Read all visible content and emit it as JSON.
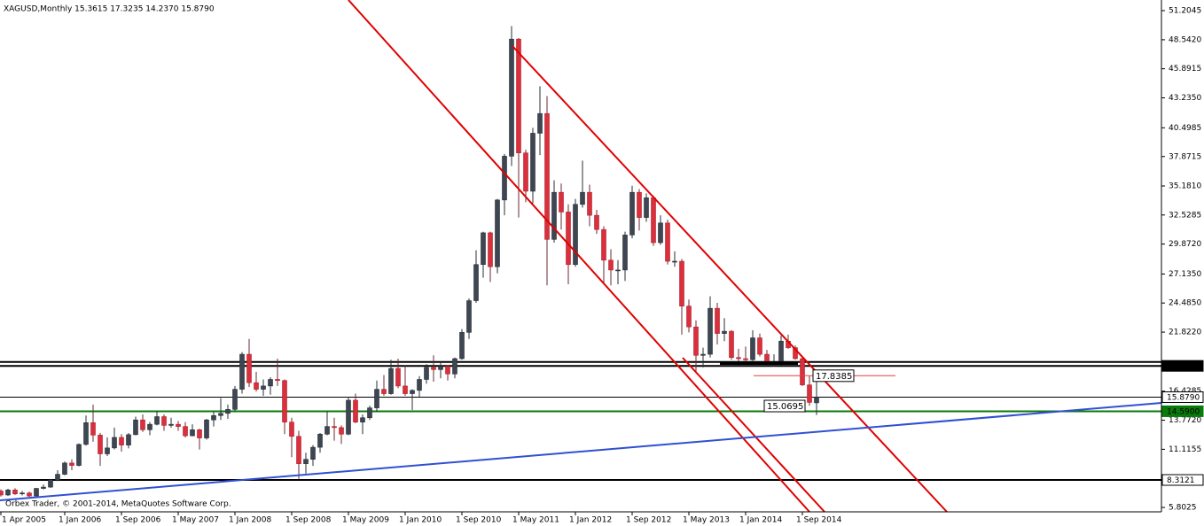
{
  "header": "XAGUSD,Monthly  15.3615 17.3235 14.2370 15.8790",
  "copyright": "Orbex Trader, © 2001-2014, MetaQuotes Software Corp.",
  "chart_data": {
    "type": "candlestick",
    "up_color": "#3d4652",
    "down_color": "#d9303c",
    "ylim": [
      5.4,
      52.176
    ],
    "yticks": [
      51.2045,
      {
        "value": 48.542,
        "label": "48.5420"
      },
      45.8915,
      {
        "value": 43.235,
        "label": "43.2350"
      },
      40.4985,
      37.8715,
      {
        "value": 35.181,
        "label": "35.1810"
      },
      32.5285,
      {
        "value": 29.872,
        "label": "29.8720"
      },
      {
        "value": 27.135,
        "label": "27.1350"
      },
      {
        "value": 24.485,
        "label": "24.4850"
      },
      {
        "value": 21.822,
        "label": "21.8220"
      },
      16.4285,
      {
        "value": 13.772,
        "label": "13.7720"
      },
      11.1155,
      5.8025
    ],
    "categories": [
      "1 Apr 2005",
      null,
      null,
      null,
      null,
      null,
      null,
      null,
      null,
      "1 Jan 2006",
      null,
      null,
      null,
      null,
      null,
      null,
      null,
      "1 Sep 2006",
      null,
      null,
      null,
      null,
      null,
      null,
      null,
      "1 May 2007",
      null,
      null,
      null,
      null,
      null,
      null,
      null,
      "1 Jan 2008",
      null,
      null,
      null,
      null,
      null,
      null,
      null,
      "1 Sep 2008",
      null,
      null,
      null,
      null,
      null,
      null,
      null,
      "1 May 2009",
      null,
      null,
      null,
      null,
      null,
      null,
      null,
      "1 Jan 2010",
      null,
      null,
      null,
      null,
      null,
      null,
      null,
      "1 Sep 2010",
      null,
      null,
      null,
      null,
      null,
      null,
      null,
      "1 May 2011",
      null,
      null,
      null,
      null,
      null,
      null,
      null,
      "1 Jan 2012",
      null,
      null,
      null,
      null,
      null,
      null,
      null,
      "1 Sep 2012",
      null,
      null,
      null,
      null,
      null,
      null,
      null,
      "1 May 2013",
      null,
      null,
      null,
      null,
      null,
      null,
      null,
      "1 Jan 2014",
      null,
      null,
      null,
      null,
      null,
      null,
      null,
      "1 Sep 2014",
      null,
      null
    ],
    "open": [
      7.3,
      6.94,
      7.4,
      7.04,
      7.12,
      6.85,
      7.54,
      7.66,
      8.31,
      8.83,
      9.86,
      9.64,
      11.56,
      13.55,
      12.41,
      10.7,
      11.24,
      12.2,
      11.5,
      12.45,
      13.8,
      12.9,
      13.4,
      14.1,
      13.3,
      13.4,
      13.2,
      12.35,
      12.9,
      12.15,
      13.8,
      14.2,
      14.4,
      14.76,
      16.6,
      19.8,
      17.2,
      16.6,
      16.9,
      17.5,
      17.4,
      13.6,
      12.3,
      9.8,
      10.2,
      11.3,
      12.5,
      13.2,
      13.1,
      12.5,
      15.6,
      13.6,
      14.0,
      14.9,
      16.6,
      16.2,
      18.5,
      16.9,
      16.2,
      16.5,
      17.5,
      18.6,
      18.4,
      18.7,
      18.0,
      19.4,
      21.8,
      24.7,
      28.0,
      30.9,
      27.8,
      33.9,
      37.9,
      48.6,
      38.2,
      34.7,
      40.0,
      41.8,
      30.3,
      34.6,
      32.8,
      28.0,
      33.5,
      34.6,
      32.5,
      31.2,
      28.4,
      27.5,
      27.5,
      30.7,
      34.6,
      32.3,
      34.1,
      30.0,
      31.8,
      28.3,
      28.3,
      24.2,
      22.3,
      19.7,
      19.8,
      24.0,
      21.7,
      21.9,
      19.5,
      19.4,
      19.3,
      21.3,
      19.8,
      19.1,
      19.1,
      21.0,
      20.4,
      19.4,
      17.0,
      15.3615
    ],
    "high": [
      7.45,
      7.5,
      7.55,
      7.3,
      7.25,
      7.6,
      7.9,
      8.4,
      9.2,
      10.0,
      10.2,
      11.65,
      14.2,
      15.2,
      12.6,
      12.2,
      13.1,
      12.5,
      12.6,
      14.1,
      14.3,
      13.6,
      14.6,
      14.3,
      14.0,
      13.7,
      13.6,
      13.4,
      13.0,
      13.9,
      14.5,
      15.8,
      15.2,
      16.9,
      20.0,
      21.2,
      18.2,
      17.5,
      17.7,
      19.4,
      17.5,
      14.0,
      12.8,
      10.8,
      11.5,
      12.6,
      14.6,
      14.0,
      13.3,
      15.9,
      16.2,
      14.3,
      15.1,
      17.4,
      17.9,
      19.3,
      19.4,
      18.8,
      16.6,
      17.8,
      18.9,
      19.7,
      19.1,
      18.8,
      19.5,
      22.1,
      24.9,
      29.3,
      31.0,
      31.0,
      34.0,
      38.1,
      49.8,
      48.7,
      38.5,
      40.5,
      44.3,
      43.4,
      35.7,
      35.4,
      33.5,
      34.0,
      37.5,
      35.3,
      33.0,
      31.5,
      29.4,
      28.4,
      31.0,
      35.2,
      34.9,
      34.5,
      34.3,
      32.5,
      32.1,
      29.2,
      28.5,
      24.8,
      22.9,
      20.4,
      25.1,
      24.5,
      23.1,
      22.0,
      20.3,
      20.5,
      22.0,
      21.7,
      20.2,
      19.8,
      21.5,
      21.6,
      20.6,
      19.5,
      17.8,
      17.3235
    ],
    "low": [
      6.8,
      6.85,
      6.95,
      6.9,
      6.75,
      6.8,
      7.45,
      7.6,
      8.2,
      8.75,
      9.2,
      9.55,
      11.45,
      11.8,
      9.6,
      10.5,
      11.1,
      10.9,
      11.2,
      12.4,
      12.7,
      12.4,
      13.3,
      12.8,
      13.1,
      12.8,
      12.2,
      12.3,
      11.1,
      12.0,
      13.2,
      13.8,
      13.9,
      14.6,
      16.2,
      16.8,
      16.4,
      16.0,
      16.1,
      16.9,
      12.5,
      10.4,
      8.4,
      8.9,
      9.6,
      10.8,
      12.4,
      11.9,
      11.6,
      12.4,
      13.5,
      12.5,
      13.8,
      14.5,
      16.0,
      16.1,
      16.7,
      16.0,
      14.7,
      15.9,
      17.1,
      17.3,
      17.6,
      17.4,
      17.6,
      19.3,
      21.2,
      24.5,
      26.8,
      26.4,
      27.2,
      32.5,
      37.0,
      32.3,
      33.7,
      33.6,
      38.0,
      26.1,
      30.0,
      31.2,
      26.2,
      27.8,
      33.2,
      31.5,
      30.8,
      26.3,
      26.1,
      26.2,
      26.5,
      30.4,
      31.1,
      31.9,
      29.7,
      29.8,
      28.0,
      27.8,
      21.6,
      21.8,
      18.2,
      18.6,
      19.5,
      20.7,
      21.0,
      19.3,
      18.8,
      19.0,
      19.2,
      19.6,
      18.9,
      18.7,
      18.8,
      20.3,
      19.3,
      16.9,
      15.1,
      14.237
    ],
    "close": [
      6.94,
      7.4,
      7.04,
      7.12,
      6.85,
      7.54,
      7.66,
      8.31,
      8.83,
      9.86,
      9.64,
      11.56,
      13.55,
      12.41,
      10.7,
      11.24,
      12.2,
      11.5,
      12.45,
      13.8,
      12.9,
      13.4,
      14.1,
      13.3,
      13.4,
      13.2,
      12.35,
      12.9,
      12.15,
      13.8,
      14.2,
      14.4,
      14.76,
      16.6,
      19.8,
      17.2,
      16.6,
      16.9,
      17.5,
      17.4,
      13.6,
      12.3,
      9.8,
      10.2,
      11.3,
      12.5,
      13.2,
      13.1,
      12.5,
      15.6,
      13.6,
      14.0,
      14.9,
      16.6,
      16.2,
      18.5,
      16.9,
      16.2,
      16.5,
      17.5,
      18.6,
      18.4,
      18.7,
      18.0,
      19.4,
      21.8,
      24.7,
      28.0,
      30.9,
      27.8,
      33.9,
      37.9,
      48.6,
      38.2,
      34.7,
      40.0,
      41.8,
      30.3,
      34.6,
      32.8,
      28.0,
      33.5,
      34.6,
      32.5,
      31.2,
      28.4,
      27.5,
      27.5,
      30.7,
      34.6,
      32.3,
      34.1,
      30.0,
      31.8,
      28.3,
      28.3,
      24.2,
      22.3,
      19.7,
      19.8,
      24.0,
      21.7,
      21.9,
      19.5,
      19.4,
      19.3,
      21.3,
      19.8,
      19.1,
      19.1,
      21.0,
      20.4,
      19.4,
      17.0,
      15.4,
      15.879
    ],
    "levels": [
      {
        "value": 19.1,
        "color": "#000000"
      },
      {
        "value": 18.7377,
        "color": "#000000",
        "filled": true
      },
      {
        "value": 15.879,
        "label": "15.8790",
        "color": "#000000",
        "filled": false
      },
      {
        "value": 14.59,
        "label": "14.5900",
        "color": "#0a7a0a",
        "filled": true
      },
      {
        "value": 8.3121,
        "color": "#000000",
        "filled": false
      }
    ],
    "annotations": [
      17.8385,
      15.0695
    ]
  }
}
